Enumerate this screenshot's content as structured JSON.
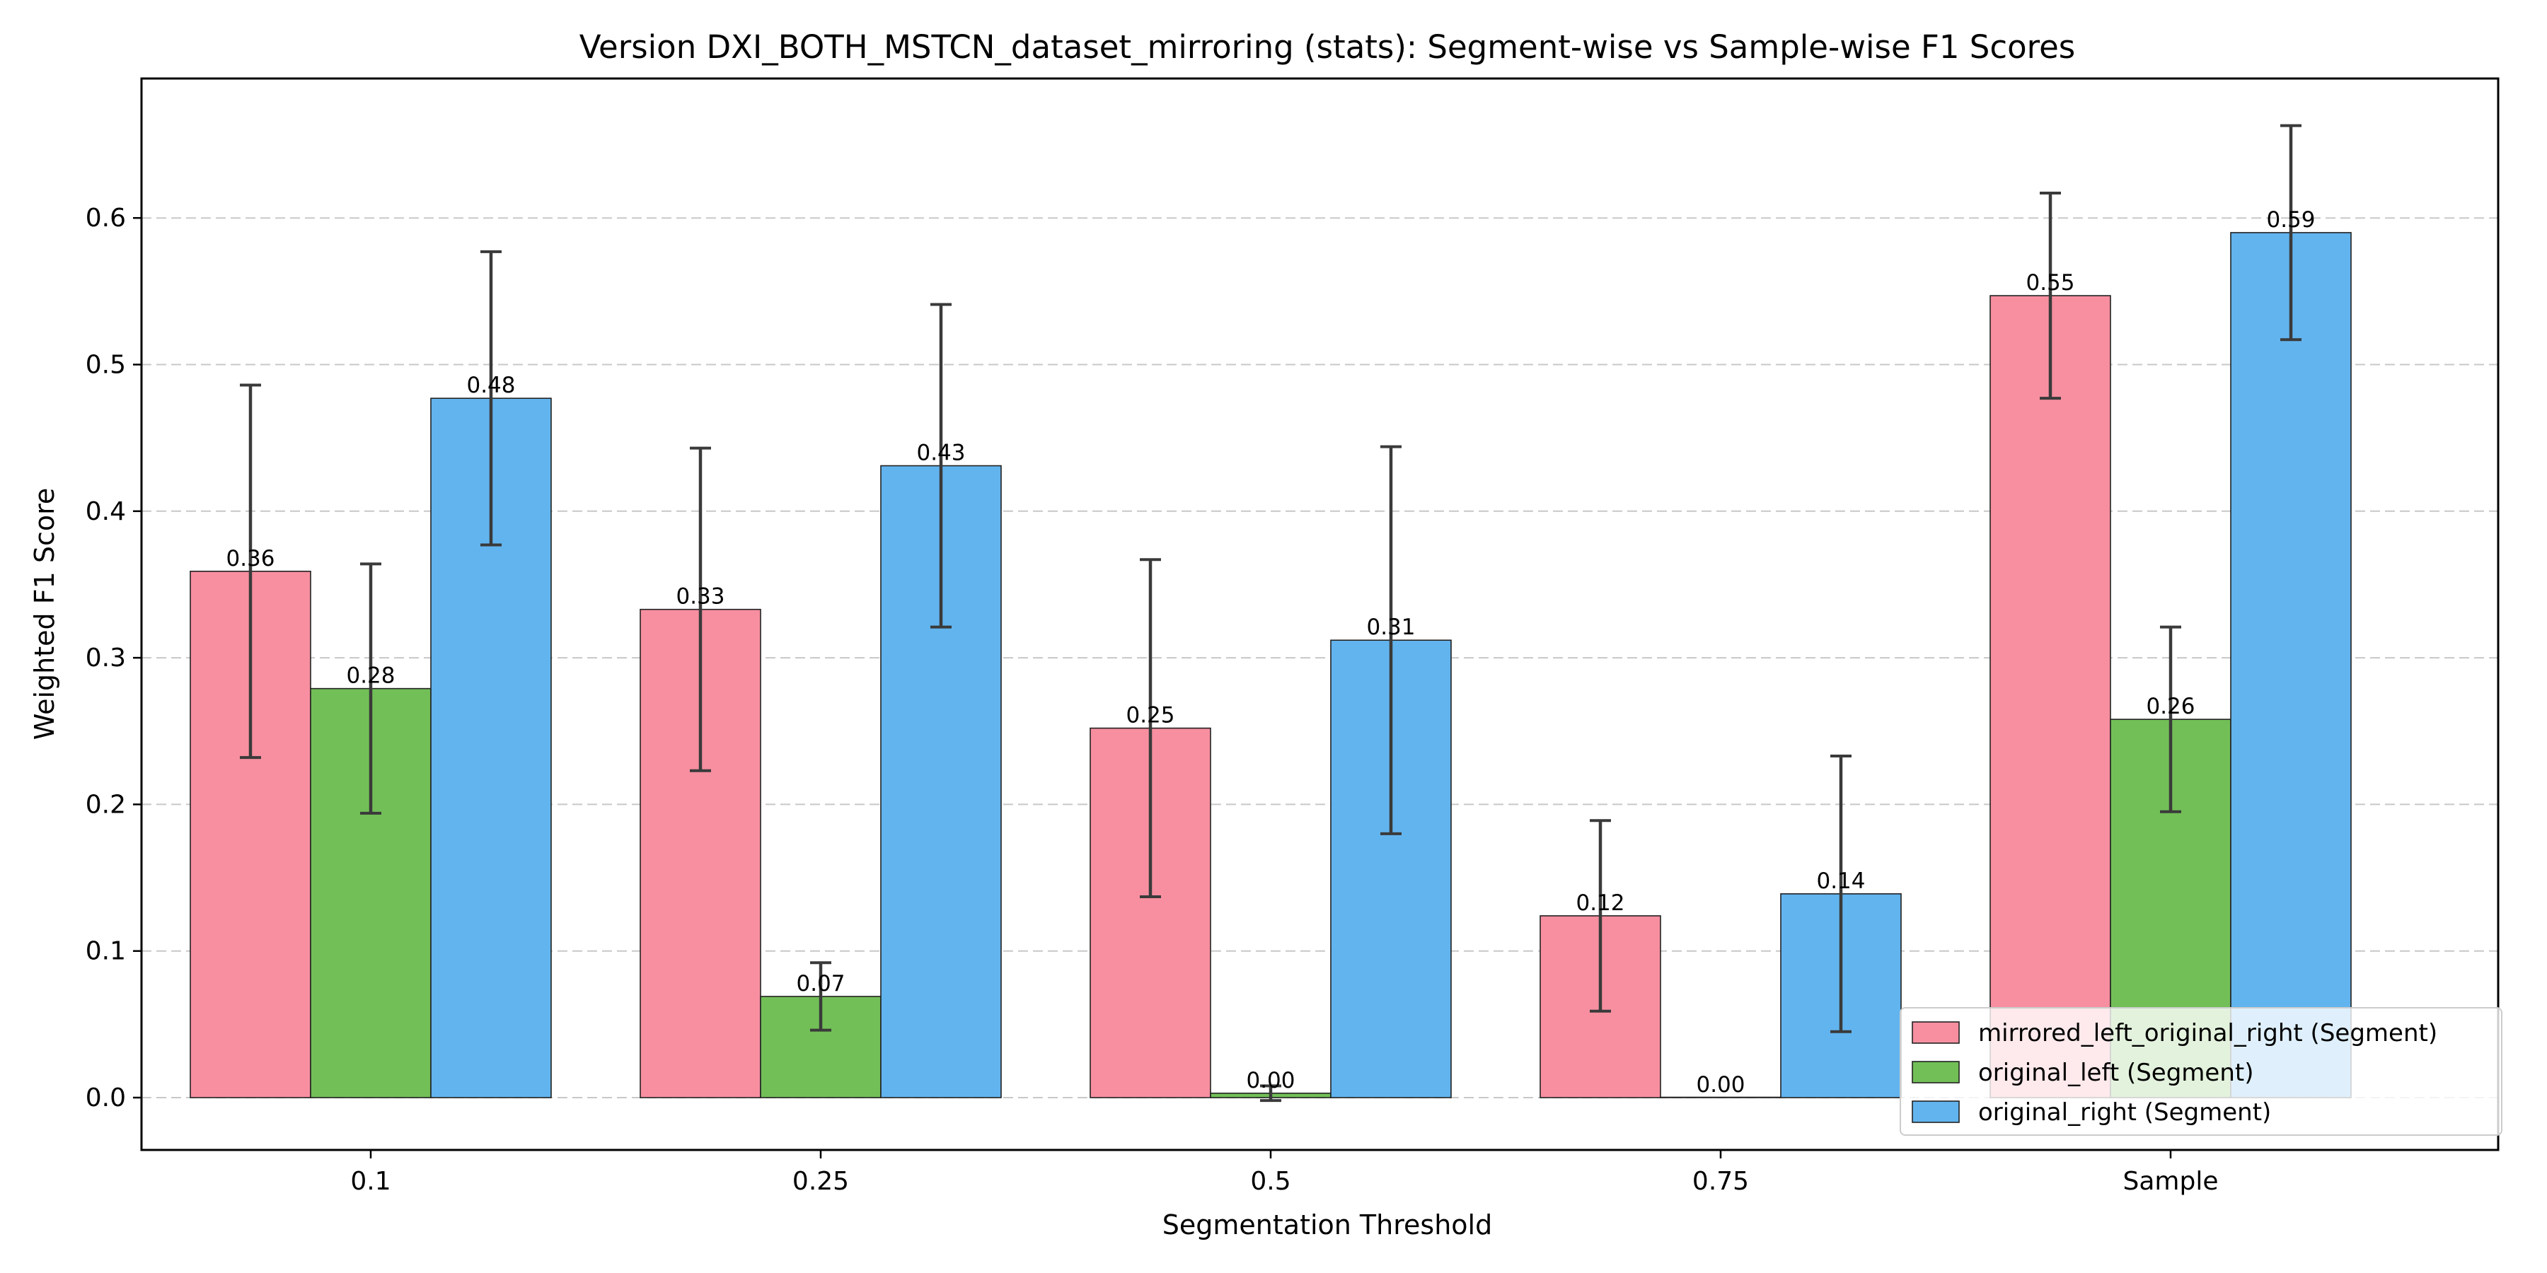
{
  "chart_data": {
    "type": "bar",
    "title": "Version DXI_BOTH_MSTCN_dataset_mirroring (stats): Segment-wise vs Sample-wise F1 Scores",
    "xlabel": "Segmentation Threshold",
    "ylabel": "Weighted F1 Score",
    "categories": [
      "0.1",
      "0.25",
      "0.5",
      "0.75",
      "Sample"
    ],
    "ylim": [
      -0.035,
      0.7
    ],
    "yticks": [
      "0.0",
      "0.1",
      "0.2",
      "0.3",
      "0.4",
      "0.5",
      "0.6"
    ],
    "grid": "y-dashed",
    "legend_position": "bottom-right",
    "series": [
      {
        "name": "mirrored_left_original_right (Segment)",
        "color": "#f78fa0",
        "values": [
          0.359,
          0.333,
          0.252,
          0.124,
          0.547
        ],
        "errors": [
          0.127,
          0.11,
          0.115,
          0.065,
          0.07
        ],
        "labels": [
          "0.36",
          "0.33",
          "0.25",
          "0.12",
          "0.55"
        ]
      },
      {
        "name": "original_left (Segment)",
        "color": "#72bf57",
        "values": [
          0.279,
          0.069,
          0.003,
          0.0,
          0.258
        ],
        "errors": [
          0.085,
          0.023,
          0.005,
          0.0,
          0.063
        ],
        "labels": [
          "0.28",
          "0.07",
          "0.00",
          "0.00",
          "0.26"
        ]
      },
      {
        "name": "original_right (Segment)",
        "color": "#62b4ee",
        "values": [
          0.477,
          0.431,
          0.312,
          0.139,
          0.59
        ],
        "errors": [
          0.1,
          0.11,
          0.132,
          0.094,
          0.073
        ],
        "labels": [
          "0.48",
          "0.43",
          "0.31",
          "0.14",
          "0.59"
        ]
      }
    ]
  }
}
